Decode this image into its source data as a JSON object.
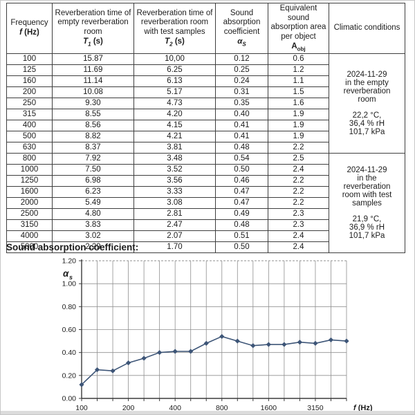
{
  "table": {
    "headers": {
      "frequency": {
        "line1": "Frequency",
        "sym": "f",
        "unit": "(Hz)"
      },
      "t1": {
        "line1": "Reverberation time of empty reverberation room",
        "sym": "T",
        "sub": "1",
        "unit": "(s)"
      },
      "t2": {
        "line1": "Reverberation time of reverberation room with test samples",
        "sym": "T",
        "sub": "2",
        "unit": "(s)"
      },
      "alpha": {
        "line1": "Sound absorption coefficient",
        "sym": "α",
        "sub": "S"
      },
      "aobj": {
        "line1": "Equivalent sound absorption area per object",
        "sym": "A",
        "sub": "obj"
      },
      "climatic": {
        "line1": "Climatic conditions"
      }
    },
    "rows": [
      [
        "100",
        "15.87",
        "10,00",
        "0.12",
        "0.6"
      ],
      [
        "125",
        "11.69",
        "6.25",
        "0.25",
        "1.2"
      ],
      [
        "160",
        "11.14",
        "6.13",
        "0.24",
        "1.1"
      ],
      [
        "200",
        "10.08",
        "5.17",
        "0.31",
        "1.5"
      ],
      [
        "250",
        "9.30",
        "4.73",
        "0.35",
        "1.6"
      ],
      [
        "315",
        "8.55",
        "4.20",
        "0.40",
        "1.9"
      ],
      [
        "400",
        "8.56",
        "4.15",
        "0.41",
        "1.9"
      ],
      [
        "500",
        "8.82",
        "4.21",
        "0.41",
        "1.9"
      ],
      [
        "630",
        "8.37",
        "3.81",
        "0.48",
        "2.2"
      ],
      [
        "800",
        "7.92",
        "3.48",
        "0.54",
        "2.5"
      ],
      [
        "1000",
        "7.50",
        "3.52",
        "0.50",
        "2.4"
      ],
      [
        "1250",
        "6.98",
        "3.56",
        "0.46",
        "2.2"
      ],
      [
        "1600",
        "6.23",
        "3.33",
        "0.47",
        "2.2"
      ],
      [
        "2000",
        "5.49",
        "3.08",
        "0.47",
        "2.2"
      ],
      [
        "2500",
        "4.80",
        "2.81",
        "0.49",
        "2.3"
      ],
      [
        "3150",
        "3.83",
        "2.47",
        "0.48",
        "2.3"
      ],
      [
        "4000",
        "3.02",
        "2.07",
        "0.51",
        "2.4"
      ],
      [
        "5000",
        "2.29",
        "1.70",
        "0.50",
        "2.4"
      ]
    ],
    "groups": [
      {
        "start": 0,
        "span": 9,
        "lines": [
          "2024-11-29",
          "in the empty",
          "reverberation",
          "room"
        ],
        "conditions": [
          "22,2 °C,",
          "36,4 % rH",
          "101,7 kPa"
        ]
      },
      {
        "start": 9,
        "span": 9,
        "lines": [
          "2024-11-29",
          "in the",
          "reverberation",
          "room with test",
          "samples"
        ],
        "conditions": [
          "21,9 °C,",
          "36,9 % rH",
          "101,7 kPa"
        ]
      }
    ]
  },
  "section_title": "Sound absorption coefficient:",
  "chart_data": {
    "type": "line",
    "title": "Sound absorption coefficient",
    "ylabel_sym": "α",
    "ylabel_sub": "s",
    "xlabel_sym": "f",
    "xlabel_unit": "(Hz)",
    "categories": [
      100,
      125,
      160,
      200,
      250,
      315,
      400,
      500,
      630,
      800,
      1000,
      1250,
      1600,
      2000,
      2500,
      3150,
      4000,
      5000
    ],
    "values": [
      0.12,
      0.25,
      0.24,
      0.31,
      0.35,
      0.4,
      0.41,
      0.41,
      0.48,
      0.54,
      0.5,
      0.46,
      0.47,
      0.47,
      0.49,
      0.48,
      0.51,
      0.5
    ],
    "ylim": [
      0,
      1.2
    ],
    "ytick_step": 0.2,
    "ytick_labels": [
      "0.00",
      "0.20",
      "0.40",
      "0.60",
      "0.80",
      "1.00",
      "1.20"
    ],
    "xtick_label_indices": [
      0,
      3,
      6,
      9,
      12,
      15
    ],
    "xtick_labels": [
      "100",
      "200",
      "400",
      "800",
      "1600",
      "3150"
    ],
    "x_scale": "log-third-octave-even-spacing",
    "grid": true,
    "legend": "none",
    "marker": "diamond",
    "line_color": "#3d5577",
    "grid_color": "#8f8f8f",
    "axis_color": "#3a3a3a",
    "label_color": "#1c1c1c"
  }
}
